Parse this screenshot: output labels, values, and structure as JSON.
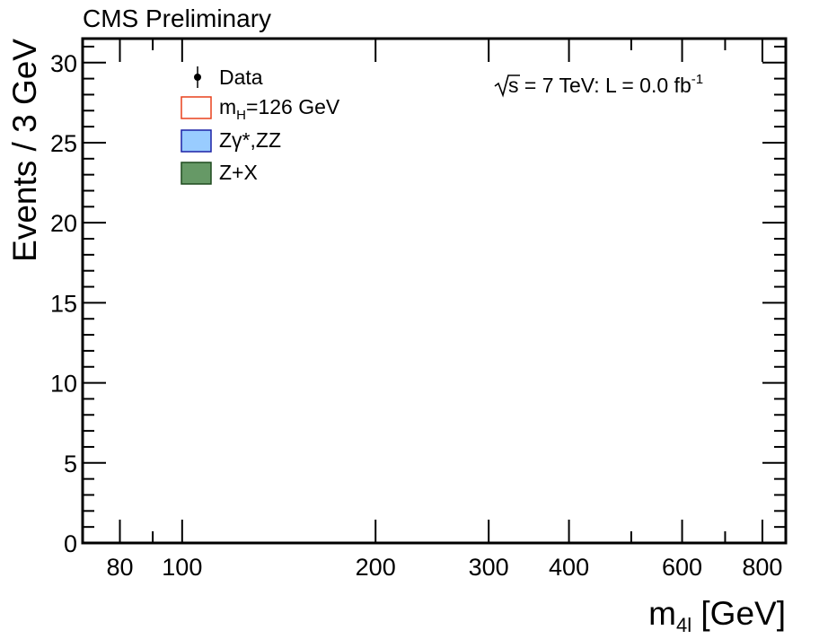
{
  "chart_data": {
    "type": "bar",
    "header": "CMS Preliminary",
    "title": "",
    "xlabel": {
      "main": "m",
      "sub": "4l",
      "unit": " [GeV]"
    },
    "ylabel": "Events / 3 GeV",
    "x_scale": "log",
    "xlim": [
      70,
      870
    ],
    "ylim": [
      0,
      31.5
    ],
    "x_ticks": [
      80,
      100,
      200,
      300,
      400,
      600,
      800
    ],
    "y_ticks": [
      0,
      5,
      10,
      15,
      20,
      25,
      30
    ],
    "annotation": {
      "sqrt": "s",
      "rest": " = 7 TeV: L = 0.0 fb",
      "sup": "-1"
    },
    "legend": {
      "placement": "top-left",
      "entries": [
        {
          "kind": "marker",
          "label": "Data"
        },
        {
          "kind": "box",
          "label_main": "m",
          "label_sub": "H",
          "label_rest": "=126 GeV",
          "stroke": "#e8401c",
          "fill": "#ffffff"
        },
        {
          "kind": "box",
          "label": "Zγ*,ZZ",
          "stroke": "#1c22a6",
          "fill": "#99ccff"
        },
        {
          "kind": "box",
          "label": "Z+X",
          "stroke": "#1f4a1f",
          "fill": "#669966"
        }
      ]
    },
    "series": [
      {
        "name": "Data",
        "points": []
      },
      {
        "name": "mH=126 GeV",
        "values": []
      },
      {
        "name": "Zγ*,ZZ",
        "values": []
      },
      {
        "name": "Z+X",
        "values": []
      }
    ]
  }
}
